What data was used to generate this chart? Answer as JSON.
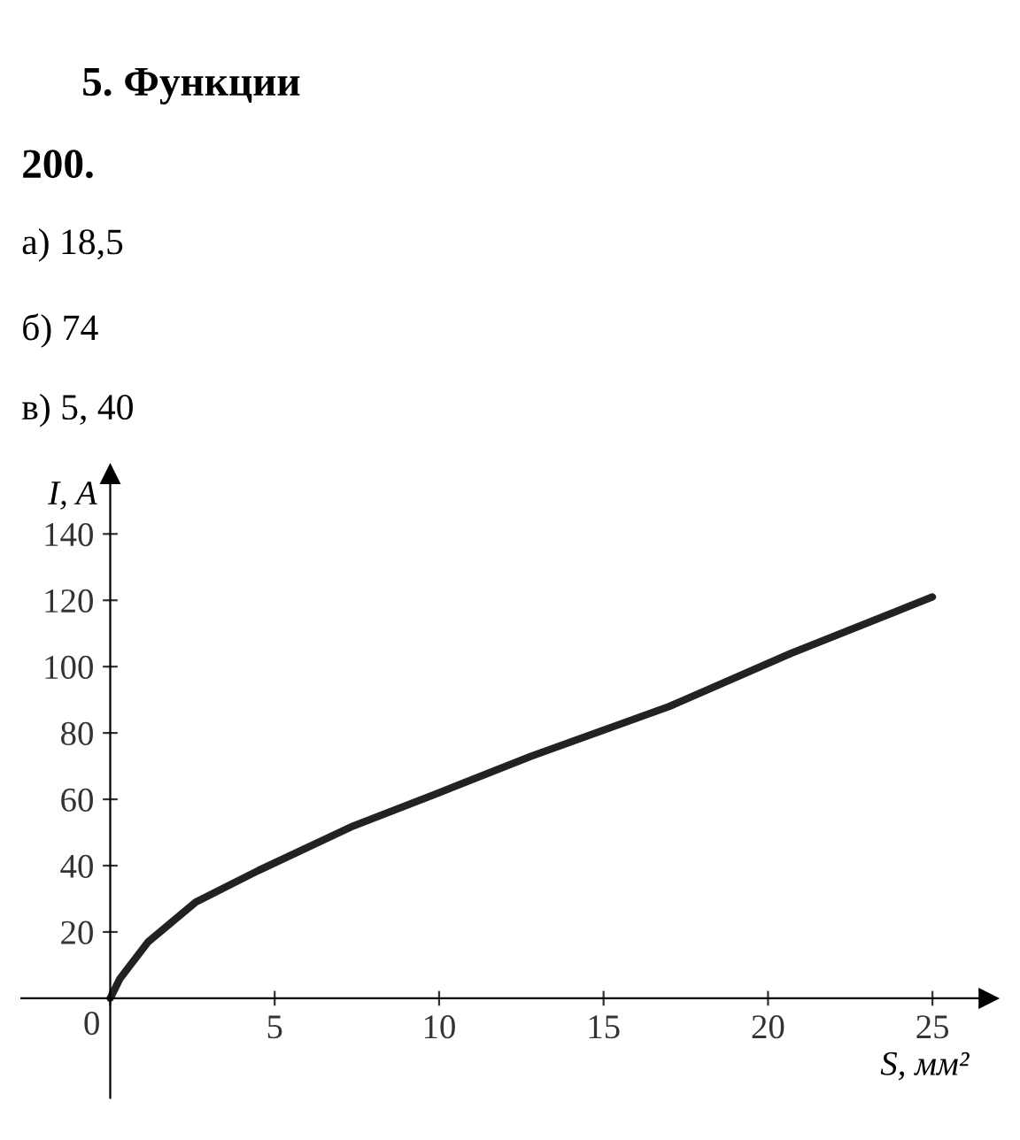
{
  "chart_data": {
    "type": "line",
    "title": "5. Функции",
    "annotations": [
      "200.",
      "а) 18,5",
      "б) 74",
      "в) 5, 40"
    ],
    "xlabel": "S, мм²",
    "ylabel": "I, A",
    "series": [
      {
        "color": "#222222",
        "x": [
          0,
          0.3,
          1.15,
          2.6,
          4.5,
          7.4,
          10,
          12.8,
          17,
          20.7,
          25
        ],
        "values": [
          0,
          6,
          17,
          29,
          38.5,
          52,
          62,
          73,
          88,
          104,
          121
        ]
      }
    ],
    "xlim": [
      -2.7,
      26.7
    ],
    "ylim": [
      -30,
      158
    ],
    "xticks": [
      0,
      5,
      10,
      15,
      20,
      25
    ],
    "yticks": [
      20,
      40,
      60,
      80,
      100,
      120,
      140
    ],
    "grid": false,
    "legend": false,
    "marker": "none",
    "line_style": "solid"
  }
}
